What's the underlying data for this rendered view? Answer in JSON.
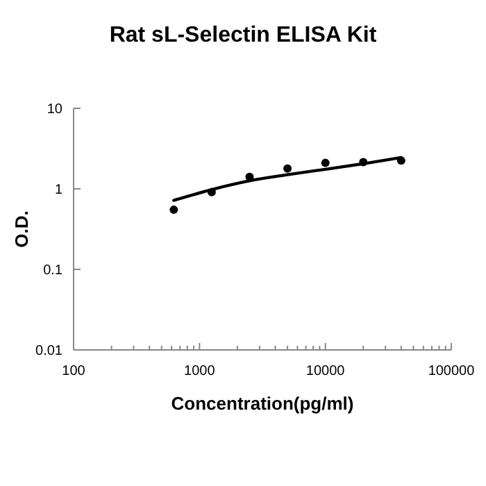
{
  "chart_data": {
    "type": "scatter",
    "title": "Rat sL-Selectin ELISA Kit",
    "xlabel": "Concentration(pg/ml)",
    "ylabel": "O.D.",
    "log": "xy",
    "marker": "circle",
    "grid": false,
    "xlim": [
      100,
      100000
    ],
    "ylim": [
      0.01,
      10
    ],
    "xticks": [
      100,
      {
        "value": 200,
        "label": null
      },
      {
        "value": 300,
        "label": null
      },
      {
        "value": 400,
        "label": null
      },
      {
        "value": 500,
        "label": null
      },
      {
        "value": 600,
        "label": null
      },
      {
        "value": 700,
        "label": null
      },
      {
        "value": 800,
        "label": null
      },
      {
        "value": 900,
        "label": null
      },
      1000,
      {
        "value": 2000,
        "label": null
      },
      {
        "value": 3000,
        "label": null
      },
      {
        "value": 4000,
        "label": null
      },
      {
        "value": 5000,
        "label": null
      },
      {
        "value": 6000,
        "label": null
      },
      {
        "value": 7000,
        "label": null
      },
      {
        "value": 8000,
        "label": null
      },
      {
        "value": 9000,
        "label": null
      },
      10000,
      {
        "value": 20000,
        "label": null
      },
      {
        "value": 30000,
        "label": null
      },
      {
        "value": 40000,
        "label": null
      },
      {
        "value": 50000,
        "label": null
      },
      {
        "value": 60000,
        "label": null
      },
      {
        "value": 70000,
        "label": null
      },
      {
        "value": 80000,
        "label": null
      },
      {
        "value": 90000,
        "label": null
      },
      100000
    ],
    "yticks": [
      0.01,
      0.1,
      1,
      10
    ],
    "series": [
      {
        "color": "#000000",
        "x": [
          625,
          1250,
          2500,
          5000,
          10000,
          20000,
          40000
        ],
        "values": [
          0.55,
          0.91,
          1.41,
          1.79,
          2.1,
          2.15,
          2.24
        ]
      },
      {
        "type": "line",
        "color": "#000000",
        "marker": "none",
        "x": [
          625,
          1250,
          2500,
          5000,
          10000,
          20000,
          40000
        ],
        "values": [
          0.72,
          0.98,
          1.26,
          1.5,
          1.75,
          2.05,
          2.45
        ]
      }
    ]
  }
}
